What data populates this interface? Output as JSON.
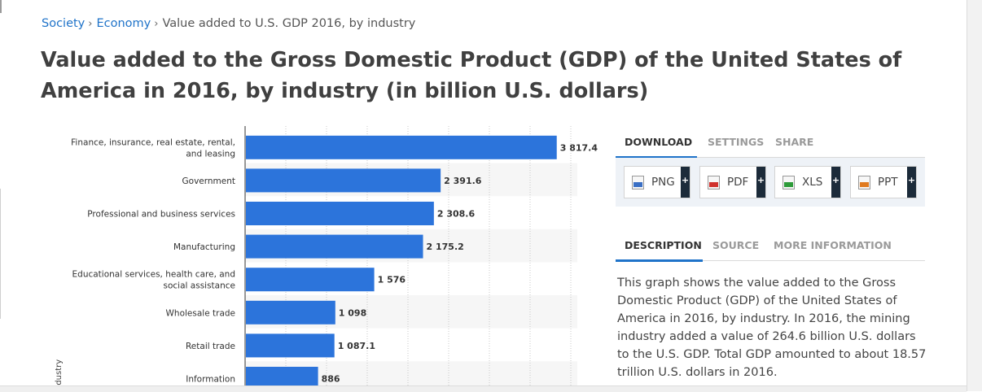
{
  "breadcrumb": {
    "items": [
      "Society",
      "Economy"
    ],
    "current": "Value added to U.S. GDP 2016, by industry",
    "separator": "›"
  },
  "page_title": "Value added to the Gross Domestic Product (GDP) of the United States of America in 2016, by industry (in billion U.S. dollars)",
  "chart_data": {
    "type": "bar",
    "orientation": "horizontal",
    "xlim": [
      0,
      4300
    ],
    "ylabel_visible_fragment": "ndustry",
    "categories": [
      [
        "Finance, insurance, real estate, rental,",
        "and leasing"
      ],
      [
        "Government"
      ],
      [
        "Professional and business services"
      ],
      [
        "Manufacturing"
      ],
      [
        "Educational services, health care, and",
        "social assistance"
      ],
      [
        "Wholesale trade"
      ],
      [
        "Retail trade"
      ],
      [
        "Information"
      ]
    ],
    "values": [
      3817.4,
      2391.6,
      2308.6,
      2175.2,
      1576,
      1098,
      1087.1,
      886
    ],
    "value_labels": [
      "3 817.4",
      "2 391.6",
      "2 308.6",
      "2 175.2",
      "1 576",
      "1 098",
      "1 087.1",
      "886"
    ],
    "bar_color": "#2c74db",
    "grid": true
  },
  "download_panel": {
    "tabs": [
      "DOWNLOAD",
      "SETTINGS",
      "SHARE"
    ],
    "active_tab": "DOWNLOAD",
    "buttons": [
      {
        "label": "PNG",
        "icon": "png-file-icon",
        "color": "#3a6fc4"
      },
      {
        "label": "PDF",
        "icon": "pdf-file-icon",
        "color": "#d0312d"
      },
      {
        "label": "XLS",
        "icon": "xls-file-icon",
        "color": "#2e9b3a"
      },
      {
        "label": "PPT",
        "icon": "ppt-file-icon",
        "color": "#e07a1f"
      }
    ],
    "plus": "+"
  },
  "info_panel": {
    "tabs": [
      "DESCRIPTION",
      "SOURCE",
      "MORE INFORMATION"
    ],
    "active_tab": "DESCRIPTION",
    "description": "This graph shows the value added to the Gross Domestic Product (GDP) of the United States of America in 2016, by industry. In 2016, the mining industry added a value of 264.6 billion U.S. dollars to the U.S. GDP. Total GDP amounted to about 18.57 trillion U.S. dollars in 2016."
  },
  "colors": {
    "link": "#1f73c9",
    "accent": "#1f73c9",
    "bar": "#2c74db"
  }
}
